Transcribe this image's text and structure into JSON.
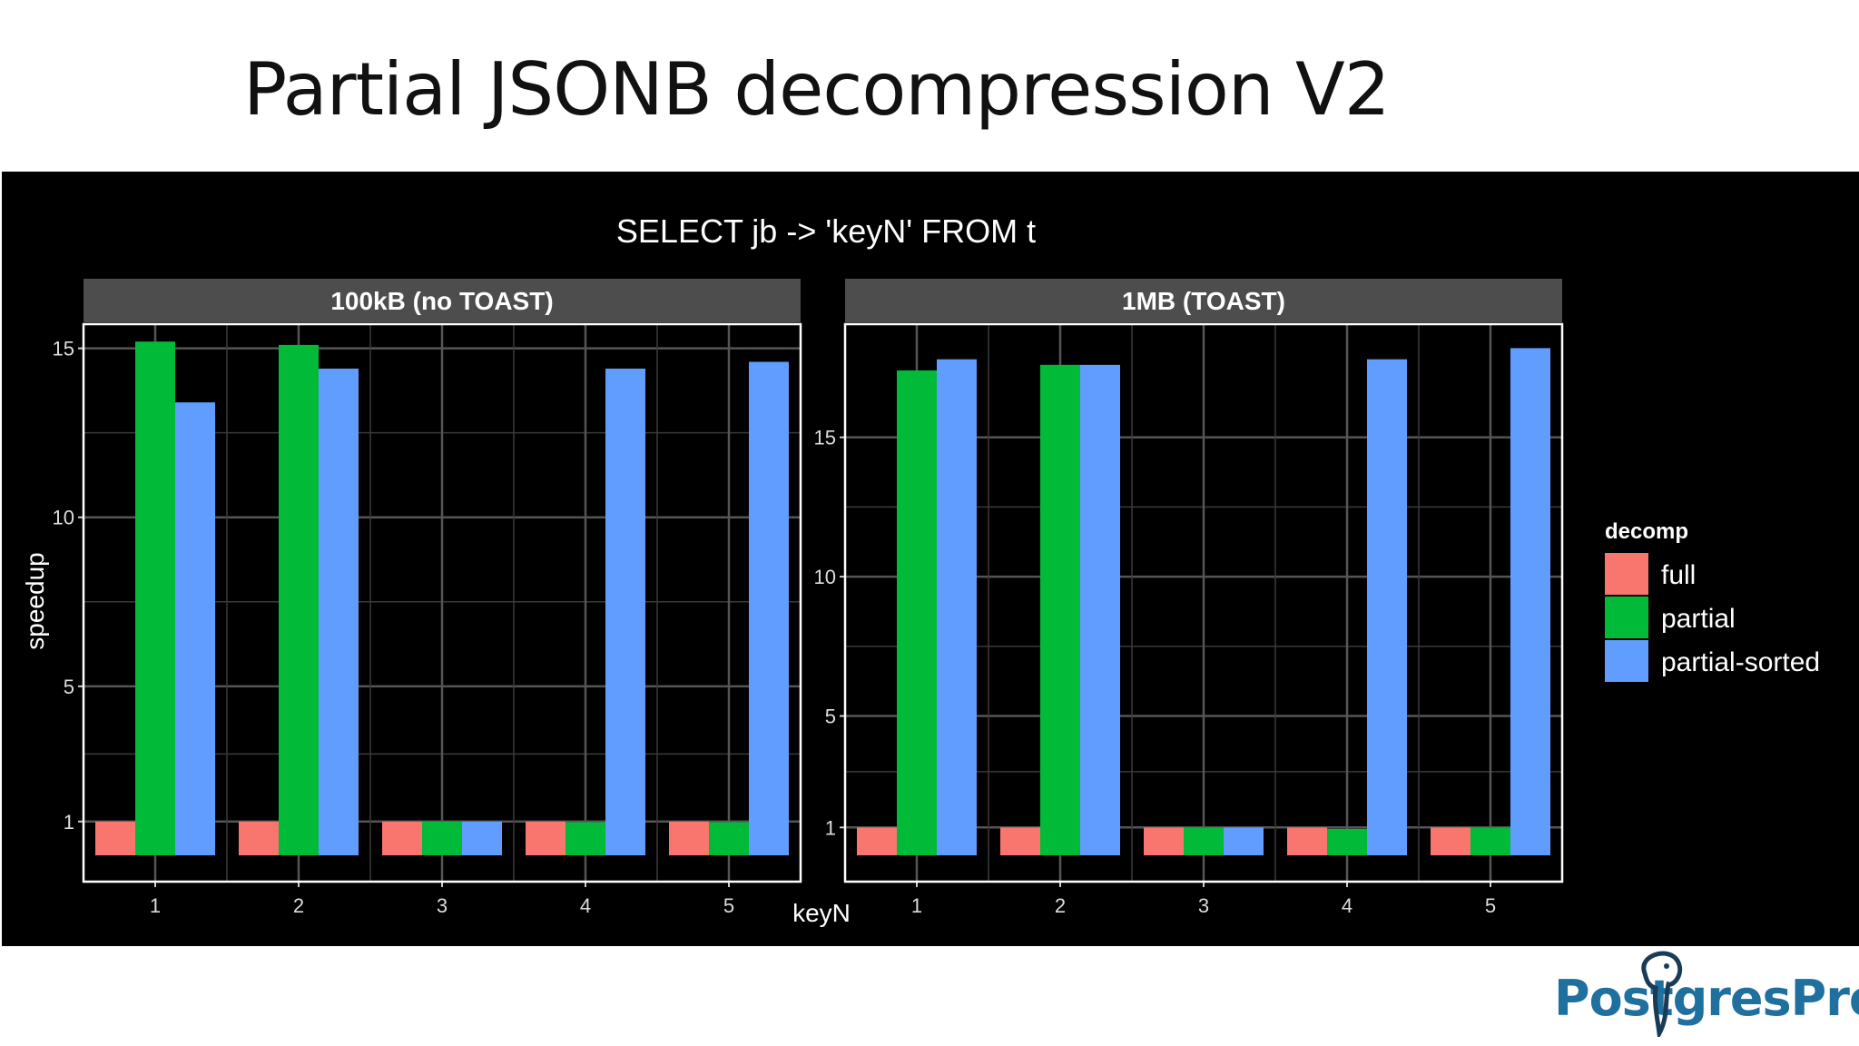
{
  "slide": {
    "title": "Partial JSONB decompression V2"
  },
  "logo": {
    "text": "PostgresPro",
    "icon": "postgres-elephant-icon",
    "color": "#1f6f9f"
  },
  "colors": {
    "full": "#F8766D",
    "partial": "#00BA38",
    "partial-sorted": "#619CFF",
    "background": "#000000",
    "strip": "#4d4d4d",
    "grid": "#555555"
  },
  "chart_data": {
    "type": "bar",
    "title": "SELECT jb -> 'keyN' FROM t",
    "xlabel": "keyN",
    "ylabel": "speedup",
    "grid": true,
    "legend": {
      "title": "decomp",
      "placement": "right",
      "entries": [
        "full",
        "partial",
        "partial-sorted"
      ]
    },
    "facets": [
      {
        "label": "100kB (no TOAST)",
        "categories": [
          "1",
          "2",
          "3",
          "4",
          "5"
        ],
        "yticks": [
          1,
          5,
          10,
          15
        ],
        "ylim": [
          0,
          15.5
        ],
        "series": [
          {
            "name": "full",
            "values": [
              1,
              1,
              1,
              1,
              1
            ]
          },
          {
            "name": "partial",
            "values": [
              15.2,
              15.1,
              1.0,
              0.98,
              0.98
            ]
          },
          {
            "name": "partial-sorted",
            "values": [
              13.4,
              14.4,
              1.0,
              14.4,
              14.6
            ]
          }
        ]
      },
      {
        "label": "1MB (TOAST)",
        "categories": [
          "1",
          "2",
          "3",
          "4",
          "5"
        ],
        "yticks": [
          1,
          5,
          10,
          15
        ],
        "ylim": [
          0,
          18.8
        ],
        "series": [
          {
            "name": "full",
            "values": [
              1,
              1,
              1,
              1,
              1
            ]
          },
          {
            "name": "partial",
            "values": [
              17.4,
              17.6,
              1.0,
              0.95,
              1.0
            ]
          },
          {
            "name": "partial-sorted",
            "values": [
              17.8,
              17.6,
              1.0,
              17.8,
              18.2
            ]
          }
        ]
      }
    ]
  }
}
